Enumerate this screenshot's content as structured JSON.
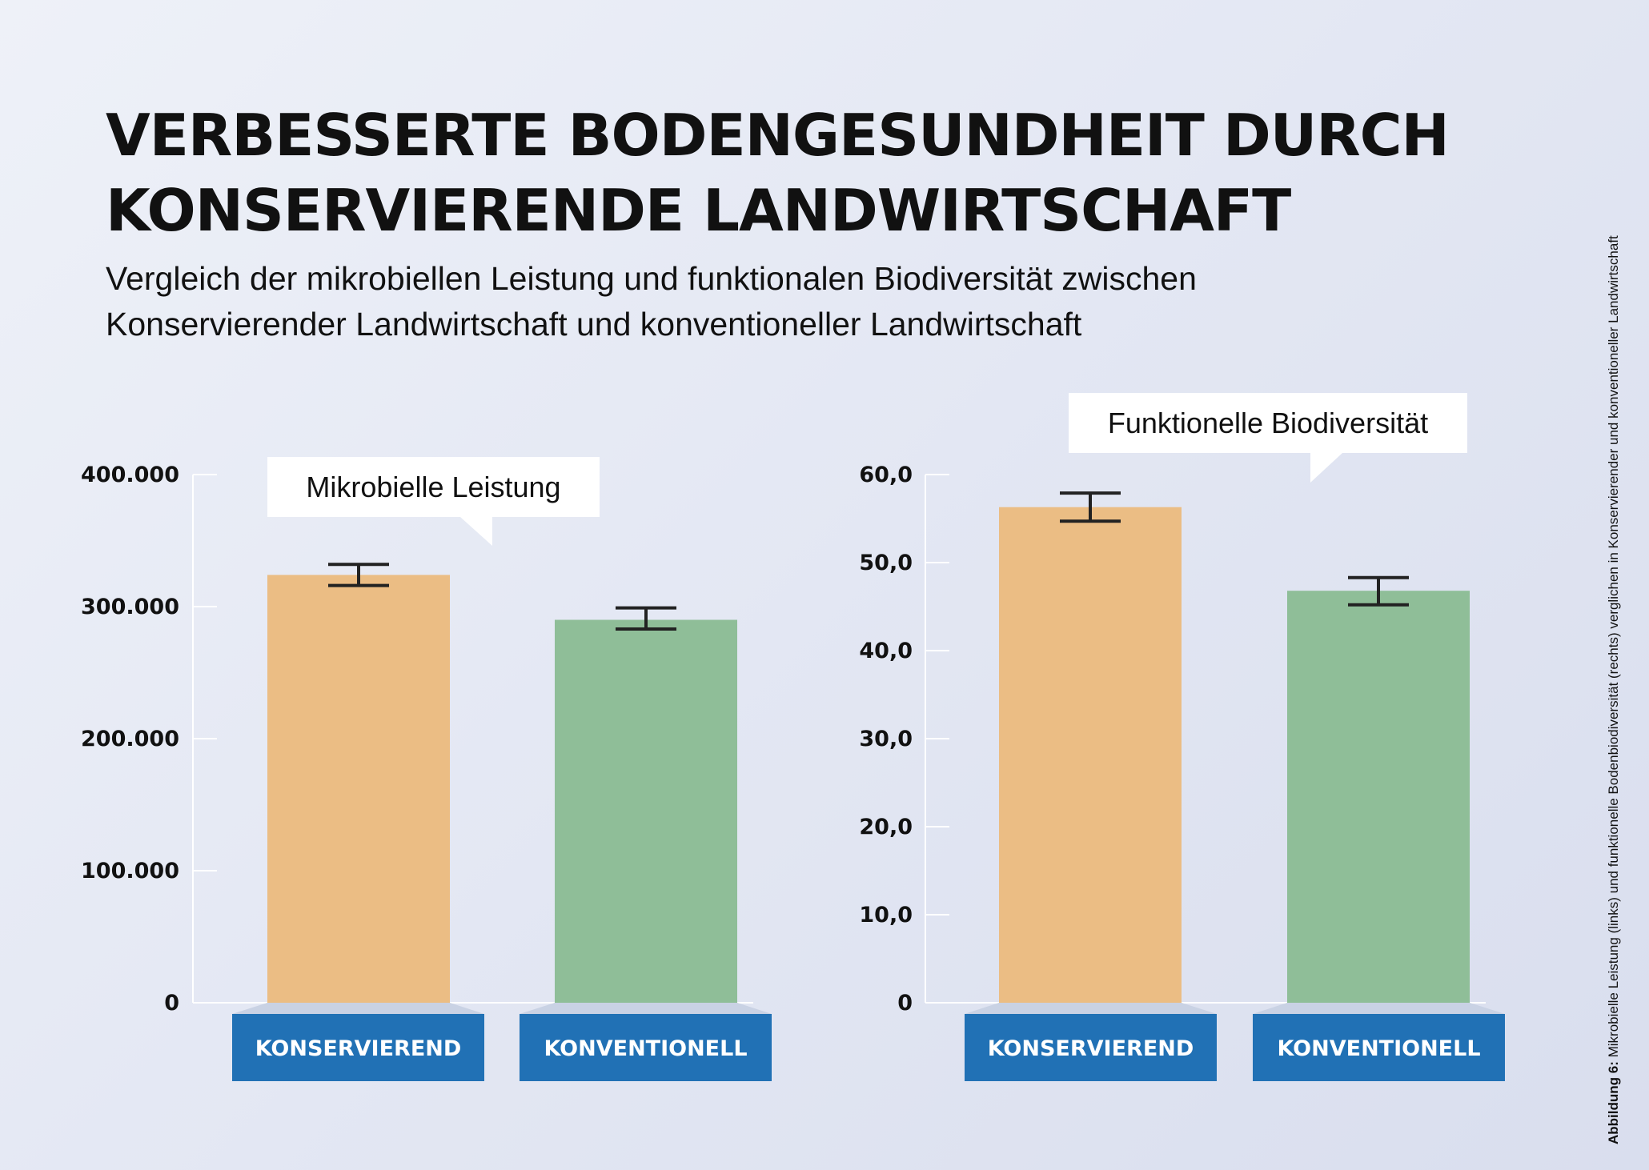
{
  "title": {
    "line1": "VERBESSERTE BODENGESUNDHEIT DURCH",
    "line2": "KONSERVIERENDE LANDWIRTSCHAFT"
  },
  "subtitle": {
    "line1": "Vergleich der mikrobiellen Leistung und funktionalen Biodiversität zwischen",
    "line2": "Konservierender Landwirtschaft und konventioneller Landwirtschaft"
  },
  "side_caption": {
    "label": "Abbildung 6:",
    "text": " Mikrobielle Leistung (links) und funktionelle Bodenbiodiversität (rechts) verglichen in Konservierender und konventioneller Landwirtschaft"
  },
  "colors": {
    "konservierend": "#ebbd84",
    "konventionell": "#8fbe98",
    "category_box": "#2171b5",
    "axis": "#ffffff",
    "error_bar": "#222222"
  },
  "chart_data": [
    {
      "type": "bar",
      "title": "Mikrobielle Leistung",
      "categories": [
        "KONSERVIEREND",
        "KONVENTIONELL"
      ],
      "values": [
        324000,
        290000
      ],
      "error": [
        [
          316000,
          332000
        ],
        [
          283000,
          299000
        ]
      ],
      "ylim": [
        0,
        400000
      ],
      "yticks": [
        0,
        100000,
        200000,
        300000,
        400000
      ],
      "ytick_labels": [
        "0",
        "100.000",
        "200.000",
        "300.000",
        "400.000"
      ],
      "grid": false
    },
    {
      "type": "bar",
      "title": "Funktionelle Biodiversität",
      "categories": [
        "KONSERVIEREND",
        "KONVENTIONELL"
      ],
      "values": [
        56.3,
        46.8
      ],
      "error": [
        [
          54.7,
          57.9
        ],
        [
          45.2,
          48.3
        ]
      ],
      "ylim": [
        0,
        60
      ],
      "yticks": [
        0,
        10,
        20,
        30,
        40,
        50,
        60
      ],
      "ytick_labels": [
        "0",
        "10,0",
        "20,0",
        "30,0",
        "40,0",
        "50,0",
        "60,0"
      ],
      "grid": false
    }
  ]
}
